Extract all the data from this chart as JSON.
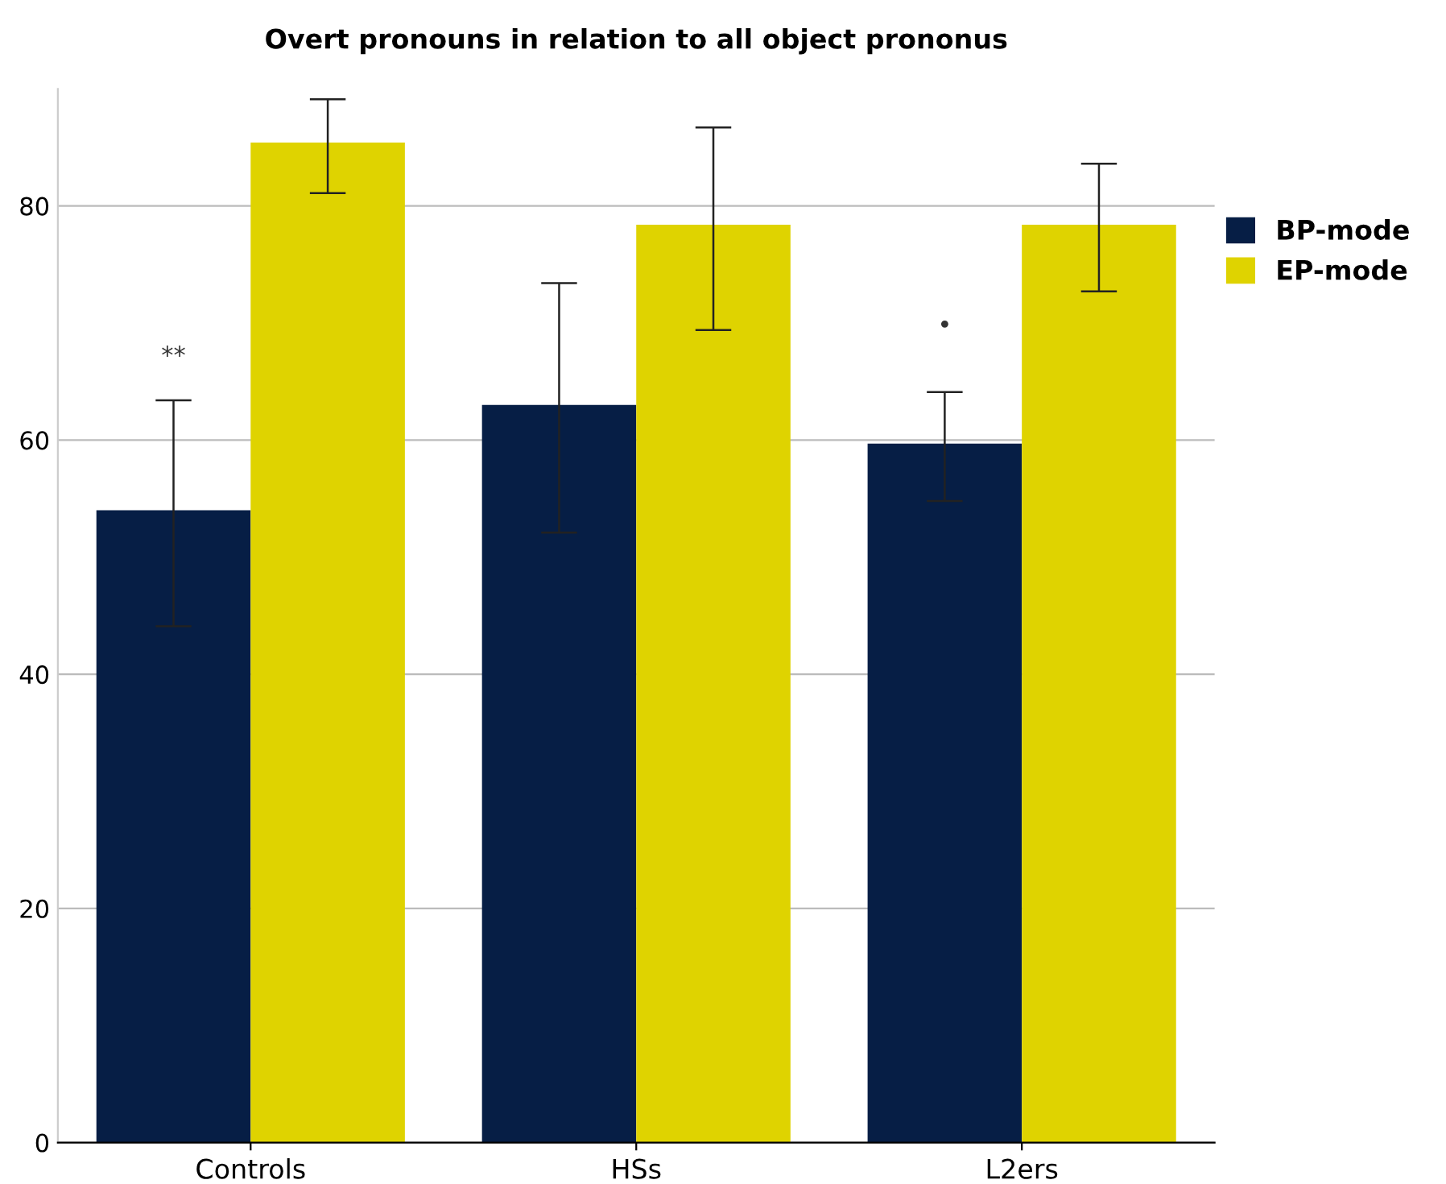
{
  "chart_data": {
    "type": "bar",
    "title": "Overt pronouns in relation to all object prononus",
    "categories": [
      "Controls",
      "HSs",
      "L2ers"
    ],
    "series": [
      {
        "name": "BP-mode",
        "color": "#061e45",
        "values": [
          54.0,
          63.0,
          59.7
        ],
        "errors": [
          [
            44.1,
            63.4
          ],
          [
            52.1,
            73.4
          ],
          [
            54.8,
            64.1
          ]
        ]
      },
      {
        "name": "EP-mode",
        "color": "#dfd300",
        "values": [
          85.4,
          78.4,
          78.4
        ],
        "errors": [
          [
            81.1,
            89.1
          ],
          [
            69.4,
            86.7
          ],
          [
            72.7,
            83.6
          ]
        ]
      }
    ],
    "ylim": [
      0,
      90
    ],
    "yticks": [
      0,
      20,
      40,
      60,
      80
    ],
    "grid": "y",
    "legend": "top right",
    "annotations": [
      "**",
      "•"
    ]
  }
}
